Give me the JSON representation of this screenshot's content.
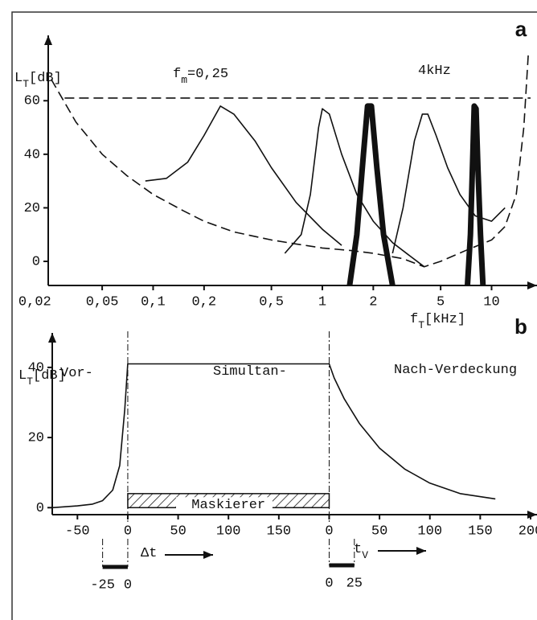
{
  "chart_data": [
    {
      "type": "line",
      "title": "a",
      "xscale": "log",
      "ylabel": [
        "L",
        "T",
        "[dB]"
      ],
      "xlabel": [
        "f",
        "T",
        "[kHz]"
      ],
      "xlim": [
        0.024,
        17
      ],
      "ylim": [
        -9,
        82
      ],
      "xticks": [
        {
          "value": 0.02,
          "label": "0,02"
        },
        {
          "value": 0.05,
          "label": "0,05"
        },
        {
          "value": 0.1,
          "label": "0,1"
        },
        {
          "value": 0.2,
          "label": "0,2"
        },
        {
          "value": 0.5,
          "label": "0,5"
        },
        1,
        2,
        5,
        10
      ],
      "yticks": [
        0,
        20,
        40,
        60
      ],
      "annotations": [
        [
          "f",
          "m",
          "=0,25"
        ],
        [
          "4kHz"
        ]
      ],
      "series": [
        {
          "style": "dashed",
          "color": "#111",
          "x": [
            0.025,
            0.035,
            0.05,
            0.07,
            0.1,
            0.15,
            0.2,
            0.3,
            0.5,
            0.7,
            1,
            1.5,
            2,
            3,
            4,
            5,
            7,
            10,
            12,
            14,
            15.5,
            16.5
          ],
          "values": [
            68,
            52,
            40,
            32,
            25,
            19,
            15,
            11,
            8,
            6.5,
            5,
            4,
            3,
            1,
            -2,
            0,
            4,
            8,
            13,
            25,
            50,
            78
          ]
        },
        {
          "style": "dashed",
          "color": "#111",
          "x": [
            0.03,
            17
          ],
          "values": [
            61,
            61
          ]
        },
        {
          "style": "solid",
          "color": "#111",
          "x": [
            0.09,
            0.12,
            0.16,
            0.2,
            0.25,
            0.3,
            0.4,
            0.5,
            0.7,
            1,
            1.3
          ],
          "values": [
            30,
            31,
            37,
            47,
            58,
            55,
            45,
            35,
            22,
            12,
            6
          ]
        },
        {
          "style": "solid",
          "color": "#111",
          "x": [
            0.6,
            0.75,
            0.85,
            0.95,
            1,
            1.1,
            1.3,
            1.6,
            2,
            2.6,
            3.3,
            4
          ],
          "values": [
            3,
            10,
            25,
            50,
            57,
            55,
            40,
            25,
            15,
            7,
            2,
            -2
          ]
        },
        {
          "style": "solid",
          "color": "#111",
          "x": [
            2.6,
            3,
            3.5,
            3.9,
            4.2,
            4.7,
            5.5,
            6.5,
            8,
            10,
            12
          ],
          "values": [
            3,
            20,
            45,
            55,
            55,
            47,
            35,
            25,
            17,
            15,
            20
          ]
        },
        {
          "style": "thick",
          "color": "#111",
          "x": [
            1.45,
            1.6,
            1.75,
            1.85,
            1.95,
            2.1,
            2.3,
            2.6
          ],
          "values": [
            -9,
            10,
            40,
            58,
            58,
            35,
            10,
            -9
          ]
        },
        {
          "style": "thick",
          "color": "#111",
          "x": [
            7.2,
            7.5,
            7.75,
            7.9,
            8.1,
            8.3,
            8.6,
            8.9
          ],
          "values": [
            -9,
            10,
            40,
            58,
            57,
            35,
            10,
            -9
          ]
        }
      ]
    },
    {
      "type": "line",
      "title": "b",
      "ylabel": [
        "L",
        "T",
        "[dB]"
      ],
      "xlim": [
        -75,
        400
      ],
      "ylim": [
        -2,
        48
      ],
      "xticks": [
        -50,
        0,
        50,
        100,
        150,
        {
          "value": 200,
          "label": "0"
        },
        {
          "value": 250,
          "label": "50"
        },
        {
          "value": 300,
          "label": "100"
        },
        {
          "value": 350,
          "label": "150"
        },
        {
          "value": 400,
          "label": "200"
        }
      ],
      "yticks": [
        0,
        20,
        40
      ],
      "annotations": [
        [
          "Vor-"
        ],
        [
          "Simultan-"
        ],
        [
          "Nach-Verdeckung"
        ]
      ],
      "masker": {
        "label": "Maskierer",
        "x": [
          0,
          200
        ],
        "level": 4
      },
      "delta_t": {
        "label": [
          "Δt"
        ],
        "ticks": [
          -25,
          0
        ]
      },
      "t_v": {
        "label": [
          "t",
          "V"
        ],
        "ticks": [
          {
            "value": 200,
            "label": "0"
          },
          {
            "value": 225,
            "label": "25"
          }
        ]
      },
      "series": [
        {
          "style": "solid",
          "color": "#111",
          "x": [
            -75,
            -50,
            -35,
            -25,
            -15,
            -8,
            -3,
            0,
            200,
            205,
            215,
            230,
            250,
            275,
            300,
            330,
            365
          ],
          "values": [
            0,
            0.5,
            1,
            2,
            5,
            12,
            28,
            41,
            41,
            37,
            31,
            24,
            17,
            11,
            7,
            4,
            2.5
          ]
        }
      ]
    }
  ]
}
